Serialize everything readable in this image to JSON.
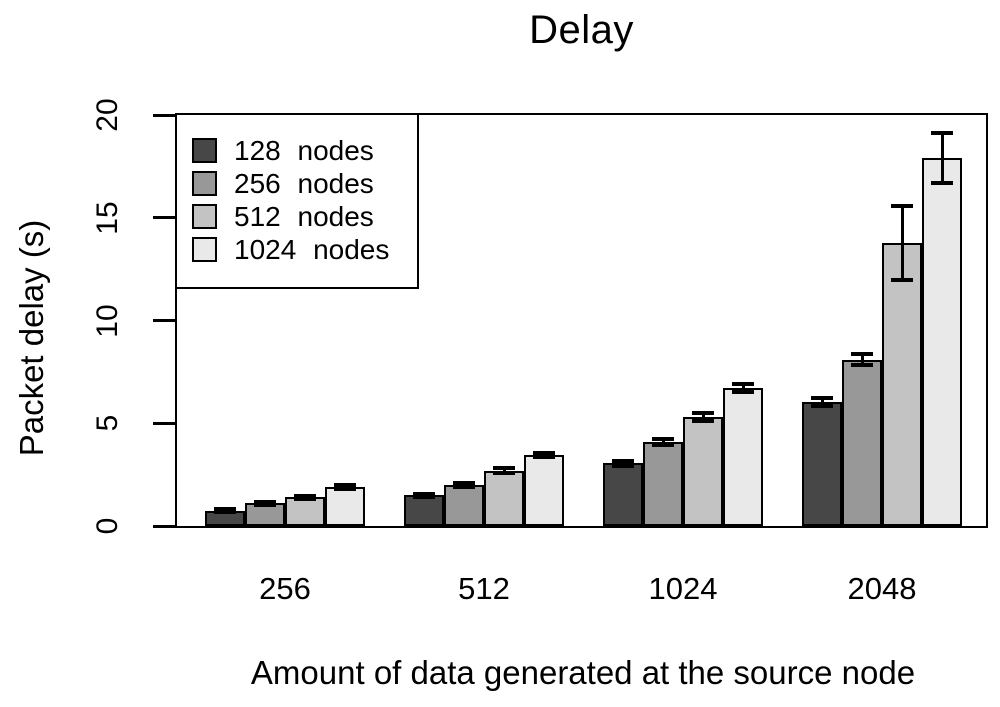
{
  "figure": {
    "background": "#ffffff",
    "line_color": "#000000"
  },
  "chart_data": {
    "type": "bar",
    "title": "Delay",
    "xlabel": "Amount of data generated at the source node",
    "ylabel": "Packet delay (s)",
    "categories": [
      "256",
      "512",
      "1024",
      "2048"
    ],
    "series": [
      {
        "name": "128 nodes",
        "color": "#474747",
        "values": [
          0.75,
          1.5,
          3.05,
          6.05
        ],
        "errors": [
          0.08,
          0.08,
          0.12,
          0.2
        ]
      },
      {
        "name": "256 nodes",
        "color": "#989898",
        "values": [
          1.1,
          2.0,
          4.1,
          8.1
        ],
        "errors": [
          0.08,
          0.1,
          0.15,
          0.25
        ]
      },
      {
        "name": "512 nodes",
        "color": "#c3c3c3",
        "values": [
          1.4,
          2.7,
          5.3,
          13.75
        ],
        "errors": [
          0.08,
          0.12,
          0.2,
          1.8
        ]
      },
      {
        "name": "1024 nodes",
        "color": "#e9e9e9",
        "values": [
          1.9,
          3.45,
          6.7,
          17.9
        ],
        "errors": [
          0.1,
          0.1,
          0.2,
          1.2
        ]
      }
    ],
    "yticks": [
      0,
      5,
      10,
      15,
      20
    ],
    "ylim": [
      0,
      20
    ],
    "grid": false,
    "error_bars": true,
    "legend_position": "top-left"
  }
}
